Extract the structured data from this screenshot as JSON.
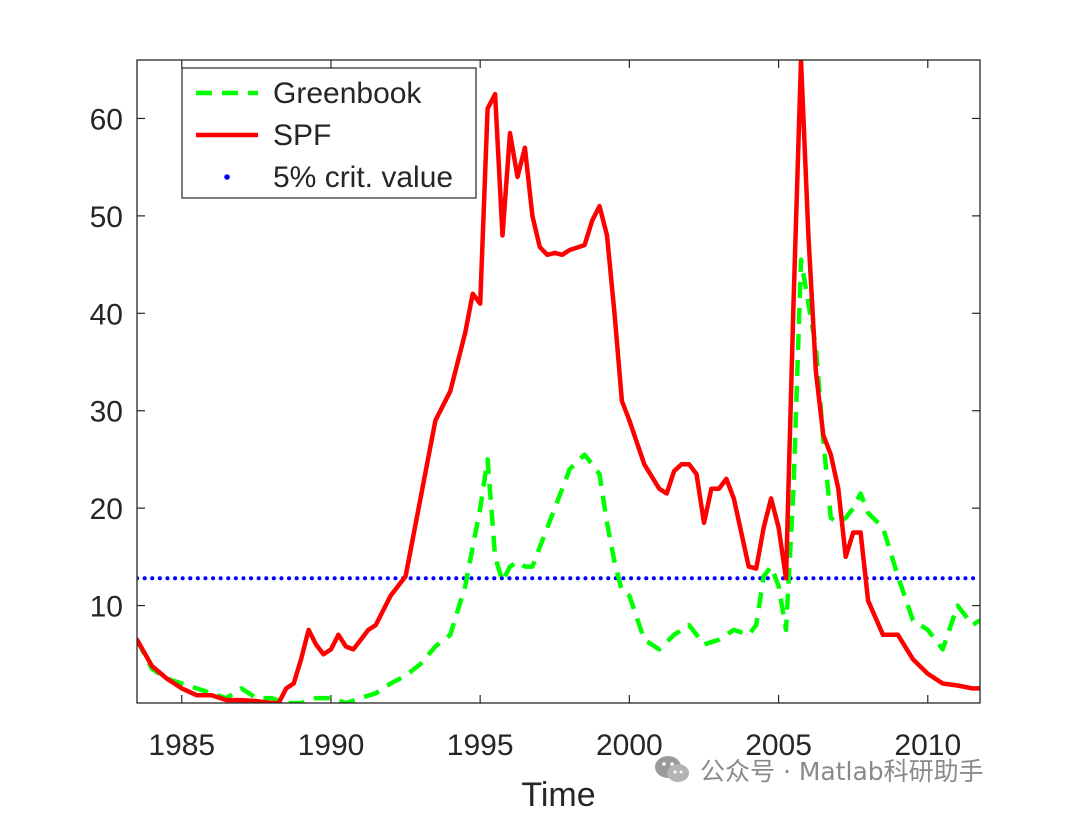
{
  "chart_data": {
    "type": "line",
    "title": "",
    "xlabel": "Time",
    "ylabel": "",
    "xlim": [
      1983.5,
      2011.75
    ],
    "ylim": [
      0,
      66
    ],
    "xticks": [
      1985,
      1990,
      1995,
      2000,
      2005,
      2010
    ],
    "yticks": [
      10,
      20,
      30,
      40,
      50,
      60
    ],
    "legend_position": "top-left",
    "series": [
      {
        "name": "Greenbook",
        "style": "dashed",
        "color": "#00ff00",
        "x": [
          1983.5,
          1984.0,
          1984.5,
          1985.0,
          1985.5,
          1986.0,
          1986.5,
          1987.0,
          1987.5,
          1988.0,
          1988.5,
          1989.0,
          1989.5,
          1990.0,
          1990.5,
          1991.0,
          1991.5,
          1992.0,
          1992.5,
          1993.0,
          1993.5,
          1994.0,
          1994.5,
          1995.0,
          1995.25,
          1995.5,
          1995.75,
          1996.0,
          1996.25,
          1996.5,
          1996.75,
          1997.0,
          1997.5,
          1998.0,
          1998.5,
          1998.75,
          1999.0,
          1999.25,
          1999.5,
          1999.75,
          2000.0,
          2000.5,
          2001.0,
          2001.5,
          2002.0,
          2002.5,
          2003.0,
          2003.5,
          2004.0,
          2004.25,
          2004.5,
          2004.75,
          2005.0,
          2005.25,
          2005.5,
          2005.75,
          2006.0,
          2006.25,
          2006.5,
          2006.75,
          2007.0,
          2007.25,
          2007.5,
          2007.75,
          2008.0,
          2008.5,
          2009.0,
          2009.5,
          2010.0,
          2010.5,
          2011.0,
          2011.25,
          2011.5,
          2011.75
        ],
        "values": [
          6.5,
          3.5,
          2.5,
          2.0,
          1.5,
          1.0,
          0.5,
          1.5,
          0.5,
          0.5,
          0.0,
          0.0,
          0.5,
          0.5,
          0.0,
          0.5,
          1.0,
          2.0,
          2.8,
          4.0,
          5.8,
          7.0,
          12.0,
          20.0,
          25.0,
          15.0,
          12.5,
          14.0,
          14.5,
          14.0,
          14.0,
          16.0,
          20.0,
          24.0,
          25.5,
          24.5,
          23.5,
          18.5,
          14.5,
          11.5,
          11.0,
          6.5,
          5.5,
          7.0,
          8.0,
          6.0,
          6.5,
          7.5,
          7.0,
          8.0,
          13.0,
          14.0,
          12.0,
          7.5,
          22.0,
          45.5,
          41.0,
          36.5,
          27.0,
          19.0,
          18.5,
          19.0,
          20.0,
          21.5,
          19.5,
          18.0,
          13.0,
          8.5,
          7.5,
          5.5,
          10.0,
          9.0,
          8.0,
          8.5
        ]
      },
      {
        "name": "SPF",
        "style": "solid",
        "color": "#ff0000",
        "x": [
          1983.5,
          1984.0,
          1984.5,
          1985.0,
          1985.5,
          1986.0,
          1986.5,
          1987.0,
          1987.5,
          1988.0,
          1988.25,
          1988.5,
          1988.75,
          1989.0,
          1989.25,
          1989.5,
          1989.75,
          1990.0,
          1990.25,
          1990.5,
          1990.75,
          1991.0,
          1991.25,
          1991.5,
          1991.75,
          1992.0,
          1992.5,
          1993.0,
          1993.5,
          1994.0,
          1994.5,
          1994.75,
          1995.0,
          1995.25,
          1995.5,
          1995.75,
          1996.0,
          1996.25,
          1996.5,
          1996.75,
          1997.0,
          1997.25,
          1997.5,
          1997.75,
          1998.0,
          1998.5,
          1998.75,
          1999.0,
          1999.25,
          1999.5,
          1999.75,
          2000.0,
          2000.5,
          2001.0,
          2001.25,
          2001.5,
          2001.75,
          2002.0,
          2002.25,
          2002.5,
          2002.75,
          2003.0,
          2003.25,
          2003.5,
          2003.75,
          2004.0,
          2004.25,
          2004.5,
          2004.75,
          2005.0,
          2005.25,
          2005.5,
          2005.75,
          2006.0,
          2006.25,
          2006.5,
          2006.75,
          2007.0,
          2007.25,
          2007.5,
          2007.75,
          2008.0,
          2008.5,
          2009.0,
          2009.5,
          2010.0,
          2010.5,
          2011.0,
          2011.5,
          2011.75
        ],
        "values": [
          6.5,
          3.8,
          2.5,
          1.5,
          0.8,
          0.8,
          0.3,
          0.3,
          0.2,
          0.0,
          0.0,
          1.5,
          2.0,
          4.5,
          7.5,
          6.0,
          5.0,
          5.5,
          7.0,
          5.8,
          5.5,
          6.5,
          7.5,
          8.0,
          9.5,
          11.0,
          13.0,
          21.0,
          29.0,
          32.0,
          38.0,
          42.0,
          41.0,
          61.0,
          62.5,
          48.0,
          58.5,
          54.0,
          57.0,
          50.0,
          46.8,
          46.0,
          46.2,
          46.0,
          46.5,
          47.0,
          49.5,
          51.0,
          48.0,
          40.0,
          31.0,
          29.0,
          24.5,
          22.0,
          21.5,
          23.8,
          24.5,
          24.5,
          23.5,
          18.5,
          22.0,
          22.0,
          23.0,
          21.0,
          17.5,
          14.0,
          13.8,
          18.0,
          21.0,
          18.0,
          12.8,
          41.0,
          66.0,
          48.0,
          34.0,
          27.5,
          25.5,
          22.0,
          15.0,
          17.5,
          17.5,
          10.5,
          7.0,
          7.0,
          4.5,
          3.0,
          2.0,
          1.8,
          1.5,
          1.5
        ]
      },
      {
        "name": "5% crit. value",
        "style": "dotted",
        "color": "#0000ff",
        "x": [
          1983.5,
          2011.75
        ],
        "values": [
          12.8,
          12.8
        ]
      }
    ]
  },
  "watermark": {
    "icon": "wechat-icon",
    "text": "公众号 · Matlab科研助手"
  }
}
